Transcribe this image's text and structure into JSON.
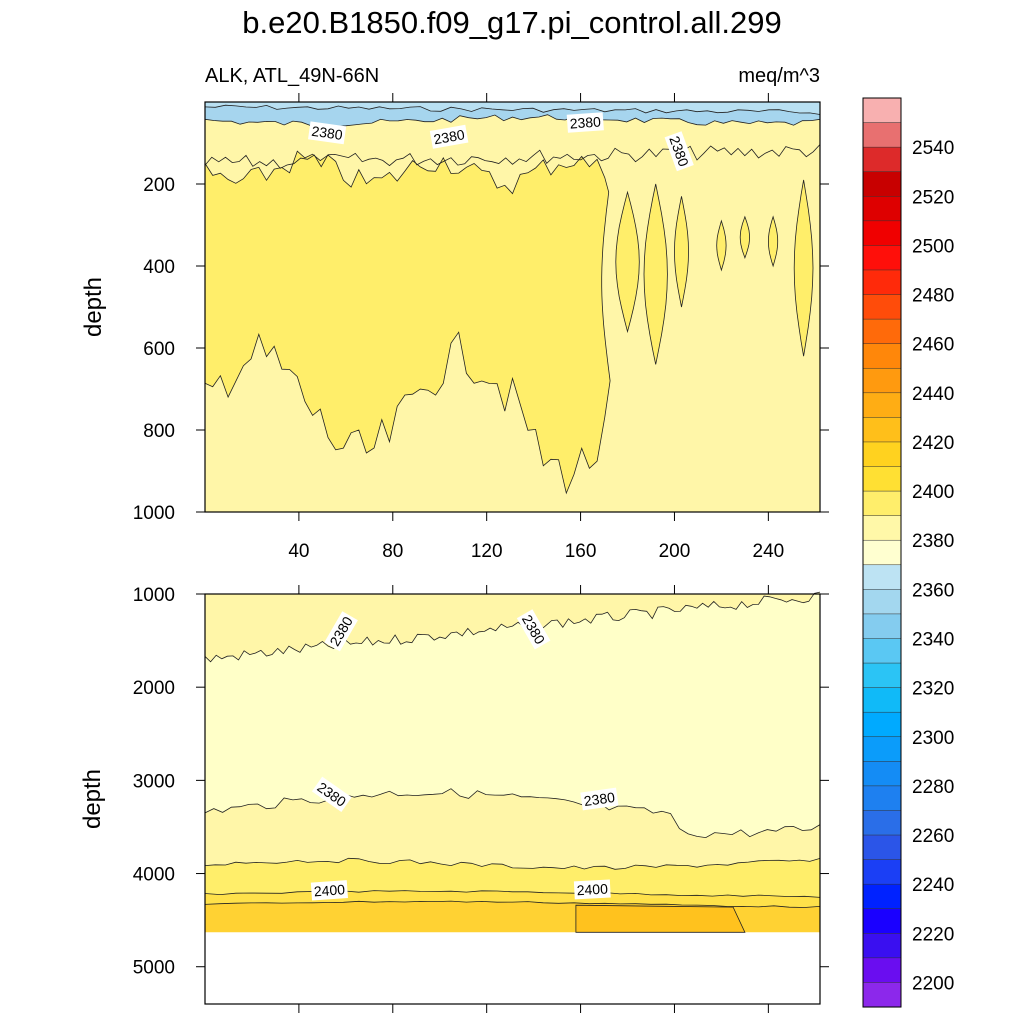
{
  "title": "b.e20.B1850.f09_g17.pi_control.all.299",
  "subtitle_left": "ALK, ATL_49N-66N",
  "subtitle_right": "meq/m^3",
  "chart_data": [
    {
      "type": "contour",
      "panel": "upper",
      "ylabel": "depth",
      "xlim": [
        0,
        262
      ],
      "ylim": [
        1000,
        0
      ],
      "y_reversed": true,
      "x_ticks": [
        "40",
        "80",
        "120",
        "160",
        "200",
        "240"
      ],
      "y_ticks": [
        "200",
        "400",
        "600",
        "800",
        "1000"
      ],
      "contour_labels": [
        {
          "text": "2380",
          "x": 52,
          "y": 75
        },
        {
          "text": "2380",
          "x": 104,
          "y": 85
        },
        {
          "text": "2380",
          "x": 162,
          "y": 50
        },
        {
          "text": "2380",
          "x": 202,
          "y": 120
        }
      ],
      "levels": [
        {
          "name": "2360-2370 band",
          "value": 2360,
          "color": "#b9e0f2"
        },
        {
          "name": "2370-2380 band",
          "value": 2370,
          "color": "#a6d5ee"
        },
        {
          "name": "2380-2390 band",
          "value": 2380,
          "color": "#fff6a8"
        },
        {
          "name": "2390-2400 band",
          "value": 2390,
          "color": "#ffee6a"
        },
        {
          "name": "2400 band",
          "value": 2400,
          "color": "#ffe55a"
        }
      ]
    },
    {
      "type": "contour",
      "panel": "lower",
      "ylabel": "depth",
      "xlim": [
        0,
        262
      ],
      "ylim": [
        5400,
        1000
      ],
      "y_reversed": true,
      "y_ticks": [
        "1000",
        "2000",
        "3000",
        "4000",
        "5000"
      ],
      "bottom_depth": 4630,
      "contour_labels": [
        {
          "text": "2380",
          "x": 58,
          "y": 1400
        },
        {
          "text": "2380",
          "x": 140,
          "y": 1380
        },
        {
          "text": "2380",
          "x": 54,
          "y": 3150
        },
        {
          "text": "2380",
          "x": 168,
          "y": 3200
        },
        {
          "text": "2400",
          "x": 53,
          "y": 4180
        },
        {
          "text": "2400",
          "x": 165,
          "y": 4170
        }
      ],
      "levels": [
        {
          "name": "2370-2380 band",
          "value": 2370,
          "color": "#ffffc8"
        },
        {
          "name": "2380-2390 band",
          "value": 2380,
          "color": "#fff6a8"
        },
        {
          "name": "2390-2400 band",
          "value": 2390,
          "color": "#ffee6a"
        },
        {
          "name": "2400-2410 band",
          "value": 2400,
          "color": "#ffe14a"
        },
        {
          "name": "2410-2420 band",
          "value": 2410,
          "color": "#ffd233"
        },
        {
          "name": "2420-2430 band",
          "value": 2420,
          "color": "#ffc21e"
        }
      ]
    }
  ],
  "colorbar": {
    "units": "meq/m^3",
    "colors": [
      "#8c28eb",
      "#6a0df0",
      "#3a0ff0",
      "#1a00ff",
      "#0022ff",
      "#1b3ff5",
      "#2b55e8",
      "#2a6ee8",
      "#1e80f0",
      "#148cf5",
      "#0b9cfa",
      "#00aaff",
      "#10baf8",
      "#2bc4f5",
      "#5ac8f3",
      "#84ccef",
      "#a3d7ef",
      "#bde3f3",
      "#ffffd0",
      "#fff8a8",
      "#ffee6b",
      "#ffe033",
      "#ffd21f",
      "#ffbf1a",
      "#ffad14",
      "#ff9a0f",
      "#ff870a",
      "#ff6a0a",
      "#ff4c0a",
      "#ff2a0a",
      "#ff0f0a",
      "#f00000",
      "#de0000",
      "#c80000",
      "#dd2a2a",
      "#e87070",
      "#f8b0b0"
    ],
    "labels": [
      "2200",
      "2220",
      "2240",
      "2260",
      "2280",
      "2300",
      "2320",
      "2340",
      "2360",
      "2380",
      "2400",
      "2420",
      "2440",
      "2460",
      "2480",
      "2500",
      "2520",
      "2540"
    ]
  }
}
